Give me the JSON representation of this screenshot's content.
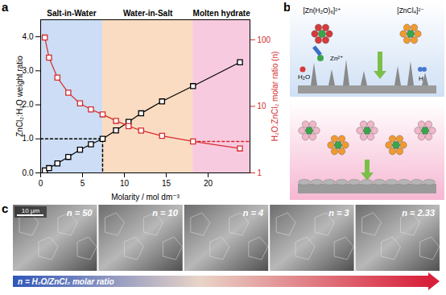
{
  "chart_data": {
    "type": "line",
    "panel_label": "a",
    "marker": "square",
    "xlabel": "Molarity / mol dm⁻³",
    "ylabel": "ZnCl₂:H₂O weight ratio",
    "y2label": "H₂O:ZnCl₂ molar ratio (n)",
    "x": [
      0.5,
      1,
      2,
      3.3,
      4.7,
      6.0,
      7.4,
      9.0,
      10.5,
      12.0,
      14.5,
      18.2,
      23.8
    ],
    "series": [
      {
        "name": "ZnCl₂:H₂O weight ratio",
        "color": "#000000",
        "axis": "y",
        "values": [
          0.07,
          0.14,
          0.28,
          0.47,
          0.68,
          0.84,
          1.0,
          1.25,
          1.5,
          1.75,
          2.1,
          2.55,
          3.25
        ]
      },
      {
        "name": "H₂O:ZnCl₂ molar ratio (n)",
        "color": "#d42c2c",
        "axis": "y2",
        "values": [
          108,
          54,
          27,
          16,
          11.1,
          9,
          7.57,
          6.06,
          5.05,
          4.33,
          3.6,
          2.97,
          2.33
        ]
      }
    ],
    "xlim": [
      0,
      25
    ],
    "xticks": [
      0,
      5,
      10,
      15,
      20
    ],
    "ylim": [
      0,
      4.5
    ],
    "yticks": [
      0,
      1,
      2,
      3,
      4
    ],
    "y2lim": [
      1,
      200
    ],
    "y2ticks": [
      1,
      10,
      100
    ],
    "log": "y2",
    "regions": [
      {
        "label": "Salt-in-Water",
        "x1": 0,
        "x2": 7.4,
        "color": "#8fb3e8"
      },
      {
        "label": "Water-in-Salt",
        "x1": 7.4,
        "x2": 18.2,
        "color": "#f3b27a"
      },
      {
        "label": "Molten hydrate",
        "x1": 18.2,
        "x2": 25,
        "color": "#f08ab8"
      }
    ],
    "guides": [
      {
        "axis": "y",
        "x": [
          0,
          7.4,
          7.4
        ],
        "y": [
          1,
          1,
          0
        ],
        "color": "#000000",
        "line_style": "dashed"
      },
      {
        "axis": "y2",
        "x": [
          18.2,
          25
        ],
        "y": [
          2.97,
          2.97
        ],
        "color": "#d42c2c",
        "line_style": "dashed"
      }
    ]
  },
  "panel_b": {
    "label": "b",
    "hydrated_ion": "[Zn(H₂O)₆]²⁺",
    "chloro_complex": "[ZnCl₄]²⁻",
    "zinc_ion": "Zn²⁺",
    "water": "H₂O",
    "hydrogen": "H₂"
  },
  "panel_c": {
    "label": "c",
    "images": [
      "n = 50",
      "n = 10",
      "n = 4",
      "n = 3",
      "n = 2.33"
    ],
    "scale_bar": "10 μm",
    "caption": "n = H₂O/ZnCl₂ molar ratio"
  }
}
